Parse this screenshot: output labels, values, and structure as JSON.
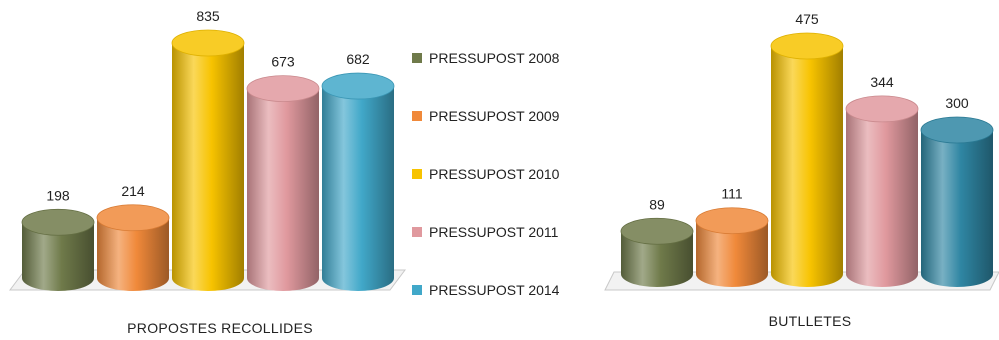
{
  "chart_data": [
    {
      "type": "bar",
      "title": "",
      "xlabel": "PROPOSTES RECOLLIDES",
      "ylabel": "",
      "categories": [
        "PRESSUPOST 2008",
        "PRESSUPOST 2009",
        "PRESSUPOST 2010",
        "PRESSUPOST 2011",
        "PRESSUPOST 2014"
      ],
      "values": [
        198,
        214,
        835,
        673,
        682
      ],
      "data_labels": [
        "198",
        "214",
        "835",
        "673",
        "682"
      ],
      "grid": false,
      "style": "3d-cylinder"
    },
    {
      "type": "bar",
      "title": "",
      "xlabel": "BUTLLETES",
      "ylabel": "",
      "categories": [
        "PRESSUPOST 2008",
        "PRESSUPOST 2009",
        "PRESSUPOST 2010",
        "PRESSUPOST 2011",
        "PRESSUPOST 2014"
      ],
      "values": [
        89,
        111,
        475,
        344,
        300
      ],
      "data_labels": [
        "89",
        "111",
        "475",
        "344",
        "300"
      ],
      "grid": false,
      "style": "3d-cylinder"
    }
  ],
  "legend": {
    "placement": "between-charts",
    "items": [
      {
        "label": "PRESSUPOST 2008",
        "color": "#6f7a4a"
      },
      {
        "label": "PRESSUPOST 2009",
        "color": "#f0893a"
      },
      {
        "label": "PRESSUPOST 2010",
        "color": "#f7c300"
      },
      {
        "label": "PRESSUPOST 2011",
        "color": "#e0999e"
      },
      {
        "label": "PRESSUPOST 2014",
        "color": "#41a8c9"
      }
    ]
  },
  "series_colors_chart2": [
    "#6f7a4a",
    "#f0893a",
    "#f7c300",
    "#e0999e",
    "#2f86a3"
  ]
}
